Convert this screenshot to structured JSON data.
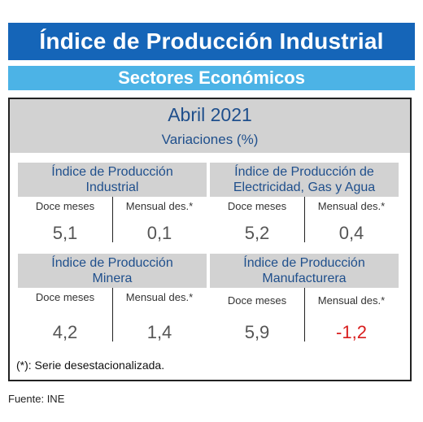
{
  "header": {
    "title": "Índice de Producción Industrial",
    "subtitle": "Sectores Económicos"
  },
  "period": {
    "title": "Abril 2021",
    "subtitle": "Variaciones (%)"
  },
  "panels": [
    {
      "title_line1": "Índice de Producción",
      "title_line2": "Industrial",
      "left_label": "Doce meses",
      "left_value": "5,1",
      "right_label": "Mensual des.*",
      "right_value": "0,1"
    },
    {
      "title_line1": "Índice de Producción de",
      "title_line2": "Electricidad, Gas y Agua",
      "left_label": "Doce meses",
      "left_value": "5,2",
      "right_label": "Mensual des.*",
      "right_value": "0,4"
    },
    {
      "title_line1": "Índice de Producción",
      "title_line2": "Minera",
      "left_label": "Doce meses",
      "left_value": "4,2",
      "right_label": "Mensual des.*",
      "right_value": "1,4"
    },
    {
      "title_line1": "Índice de Producción",
      "title_line2": "Manufacturera",
      "left_label": "Doce meses",
      "left_value": "5,9",
      "right_label": "Mensual des.*",
      "right_value": "-1,2"
    }
  ],
  "note": "(*):  Serie desestacionalizada.",
  "source": "Fuente: INE",
  "colors": {
    "title_bg": "#1565b8",
    "subtitle_bg": "#4cb3e6",
    "panel_bg": "#d2d2d2",
    "heading_text": "#1f4f8c",
    "negative_value": "#d81d1d"
  }
}
